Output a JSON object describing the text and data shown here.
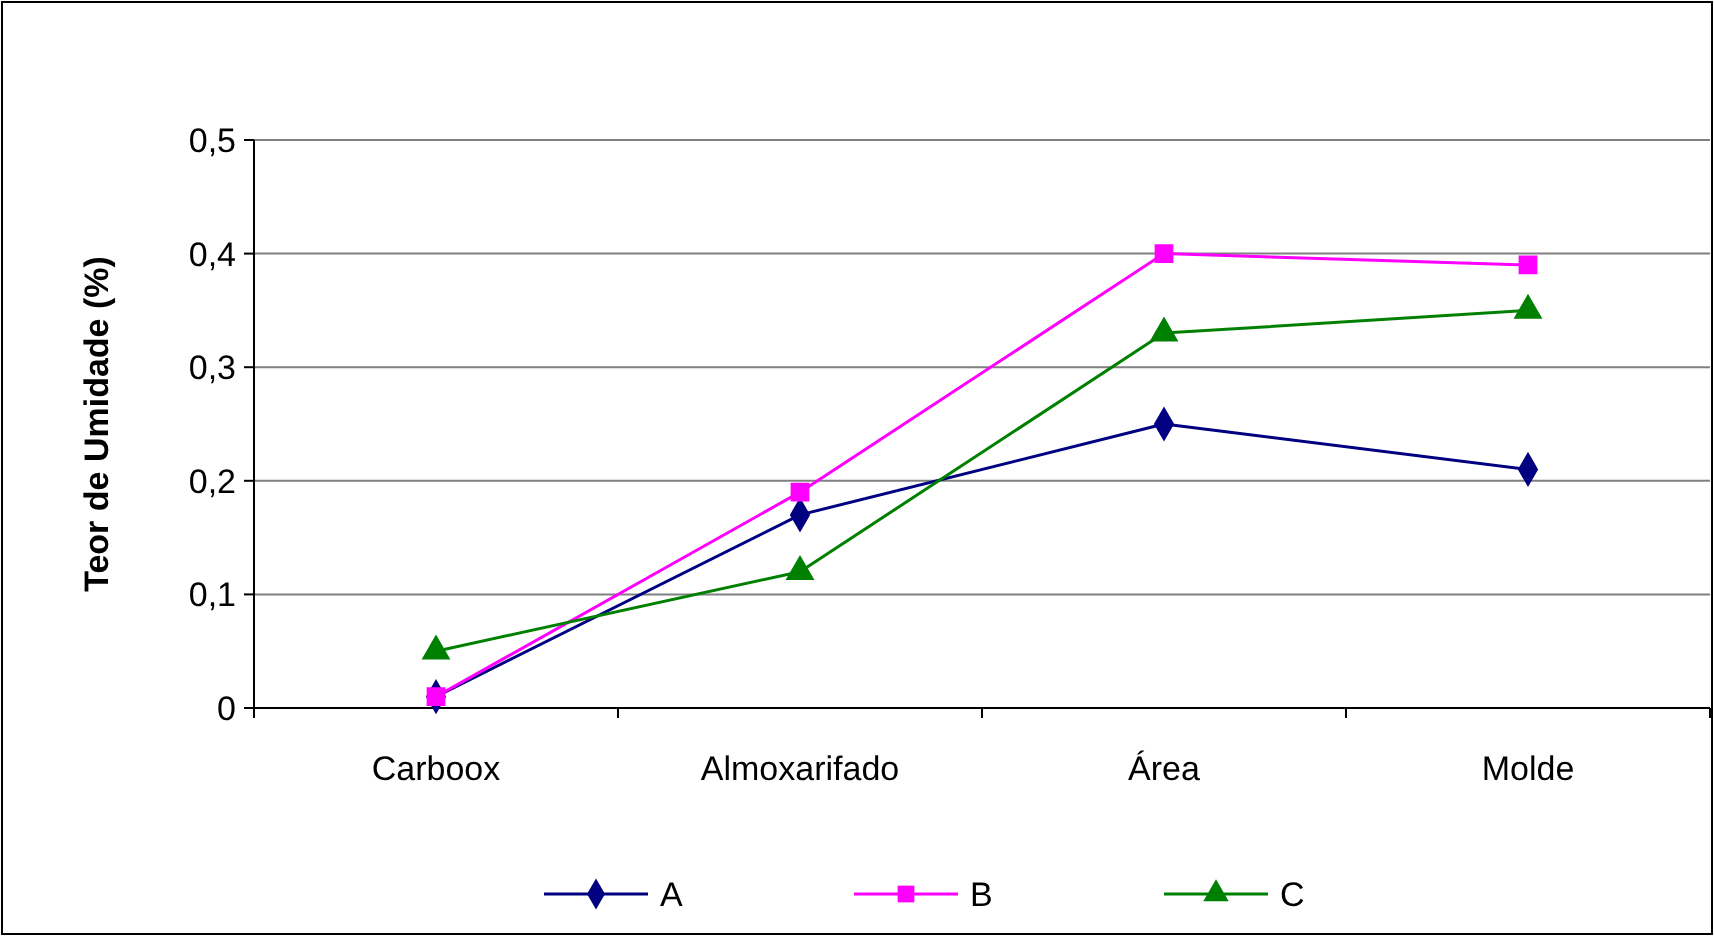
{
  "chart_data": {
    "type": "line",
    "ylabel": "Teor de Umidade (%)",
    "categories": [
      "Carboox",
      "Almoxarifado",
      "Área",
      "Molde"
    ],
    "series": [
      {
        "name": "A",
        "color": "#000080",
        "marker": "diamond",
        "values": [
          0.01,
          0.17,
          0.25,
          0.21
        ]
      },
      {
        "name": "B",
        "color": "#ff00ff",
        "marker": "square",
        "values": [
          0.01,
          0.19,
          0.4,
          0.39
        ]
      },
      {
        "name": "C",
        "color": "#008000",
        "marker": "triangle",
        "values": [
          0.05,
          0.12,
          0.33,
          0.35
        ]
      }
    ],
    "ylim": [
      0,
      0.5
    ],
    "yticks": [
      {
        "value": 0,
        "label": "0"
      },
      {
        "value": 0.1,
        "label": "0,1"
      },
      {
        "value": 0.2,
        "label": "0,2"
      },
      {
        "value": 0.3,
        "label": "0,3"
      },
      {
        "value": 0.4,
        "label": "0,4"
      },
      {
        "value": 0.5,
        "label": "0,5"
      }
    ],
    "grid": "y",
    "legend": "bottom"
  }
}
